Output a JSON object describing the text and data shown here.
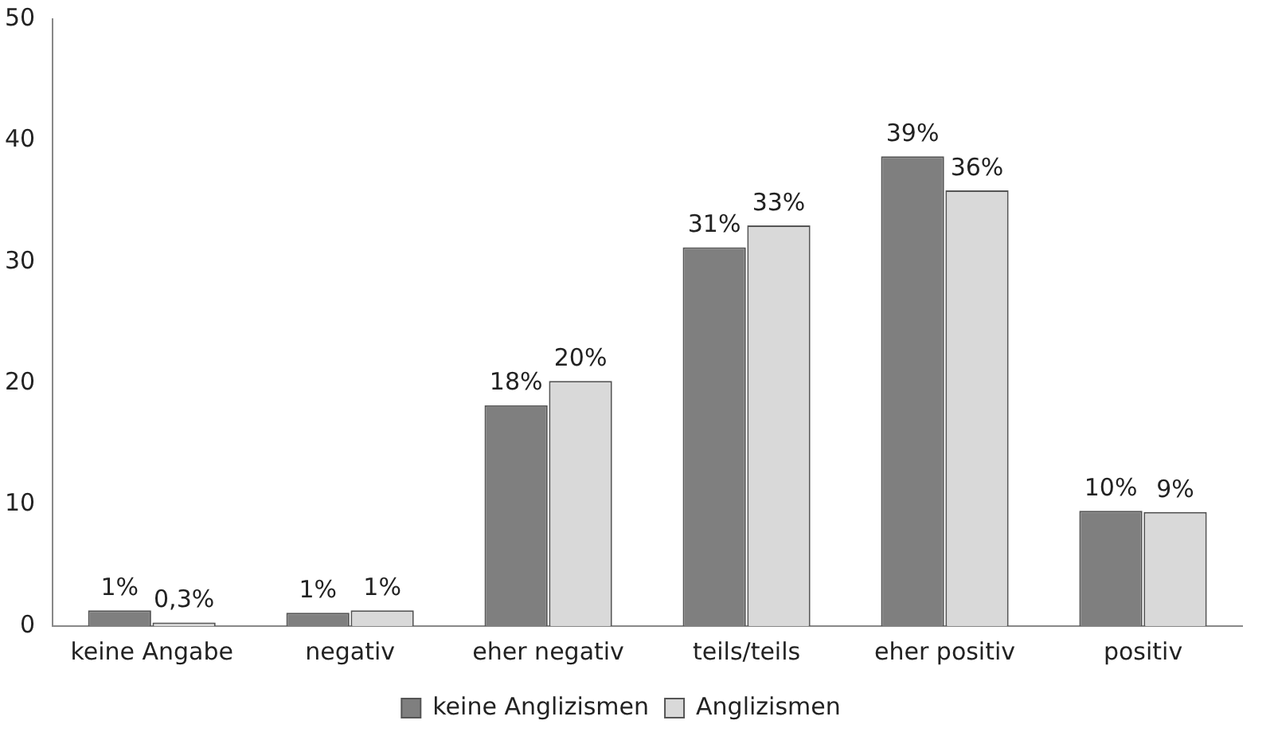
{
  "chart_data": {
    "type": "bar",
    "categories": [
      "keine Angabe",
      "negativ",
      "eher negativ",
      "teils/teils",
      "eher positiv",
      "positiv"
    ],
    "series": [
      {
        "name": "keine Anglizismen",
        "color": "#7f7f7f",
        "values": [
          1.3,
          1.1,
          18.2,
          31.2,
          38.7,
          9.5
        ],
        "value_labels": [
          "1%",
          "1%",
          "18%",
          "31%",
          "39%",
          "10%"
        ]
      },
      {
        "name": "Anglizismen",
        "color": "#d9d9d9",
        "values": [
          0.3,
          1.3,
          20.2,
          33,
          35.9,
          9.4
        ],
        "value_labels": [
          "0,3%",
          "1%",
          "20%",
          "33%",
          "36%",
          "9%"
        ]
      }
    ],
    "ylim": [
      0,
      50
    ],
    "yticks": [
      0,
      10,
      20,
      30,
      40,
      50
    ],
    "grid": false,
    "legend": "bottom"
  }
}
